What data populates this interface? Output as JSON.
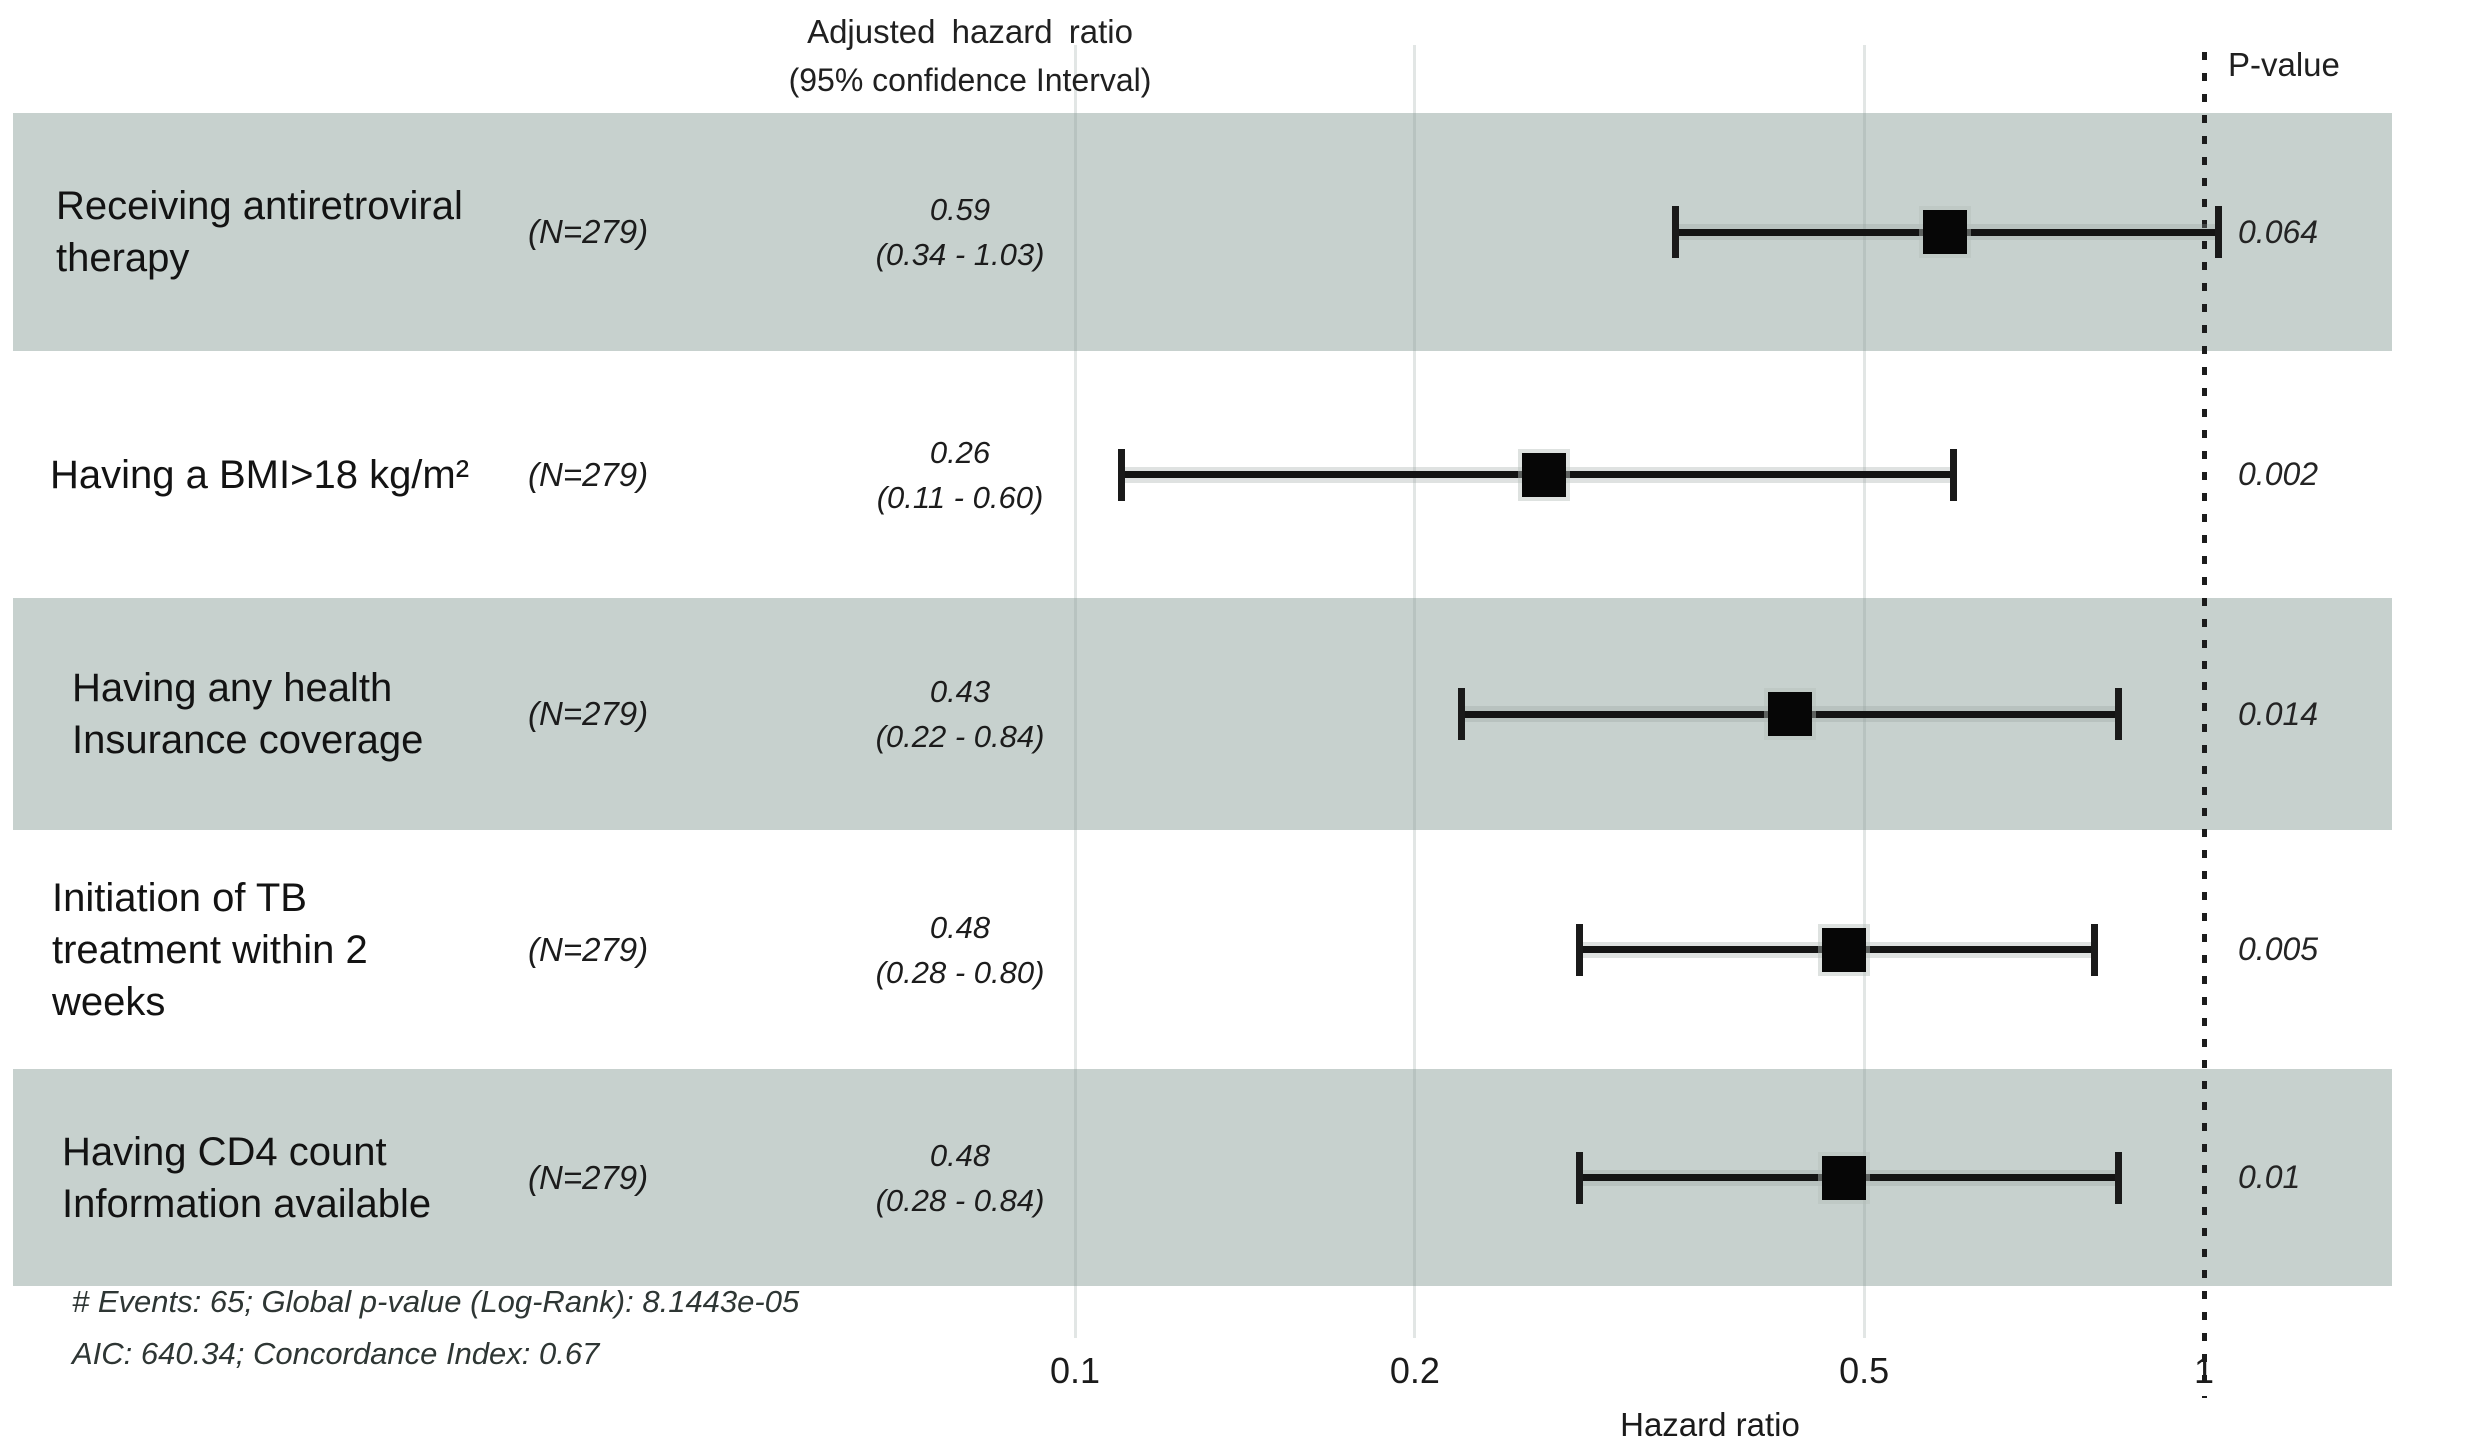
{
  "chart_data": {
    "type": "forest",
    "title": "Adjusted hazard ratio",
    "subtitle": "(95% confidence Interval)",
    "pvalue_header": "P-value",
    "xlabel": "Hazard ratio",
    "x_scale": "log10",
    "x_ticks": [
      0.1,
      0.2,
      0.5,
      1
    ],
    "x_tick_labels": [
      "0.1",
      "0.2",
      "0.5",
      "1"
    ],
    "reference_value": 1,
    "legend_position": "none",
    "grid": "vertical-light",
    "rows": [
      {
        "label_lines": [
          "Receiving antiretroviral",
          "therapy"
        ],
        "n_label": "(N=279)",
        "estimate_label": "0.59",
        "ci_label": "(0.34 - 1.03)",
        "hr": 0.59,
        "ci_low": 0.34,
        "ci_high": 1.03,
        "p_value": "0.064",
        "shaded": true
      },
      {
        "label_lines": [
          "Having a BMI>18 kg/m²"
        ],
        "n_label": "(N=279)",
        "estimate_label": "0.26",
        "ci_label": "(0.11 - 0.60)",
        "hr": 0.26,
        "ci_low": 0.11,
        "ci_high": 0.6,
        "p_value": "0.002",
        "shaded": false
      },
      {
        "label_lines": [
          "Having any health",
          "Insurance coverage"
        ],
        "n_label": "(N=279)",
        "estimate_label": "0.43",
        "ci_label": "(0.22 - 0.84)",
        "hr": 0.43,
        "ci_low": 0.22,
        "ci_high": 0.84,
        "p_value": "0.014",
        "shaded": true
      },
      {
        "label_lines": [
          "Initiation of TB",
          "treatment within 2",
          "weeks"
        ],
        "n_label": "(N=279)",
        "estimate_label": "0.48",
        "ci_label": "(0.28 - 0.80)",
        "hr": 0.48,
        "ci_low": 0.28,
        "ci_high": 0.8,
        "p_value": "0.005",
        "shaded": false
      },
      {
        "label_lines": [
          "Having CD4 count",
          "Information available"
        ],
        "n_label": "(N=279)",
        "estimate_label": "0.48",
        "ci_label": "(0.28 - 0.84)",
        "hr": 0.48,
        "ci_low": 0.28,
        "ci_high": 0.84,
        "p_value": "0.01",
        "shaded": true
      }
    ],
    "footnote_line1": "# Events: 65; Global p-value (Log-Rank): 8.1443e-05",
    "footnote_line2": "AIC: 640.34; Concordance Index: 0.67",
    "colors": {
      "band": "#c7d1ce",
      "marker": "#060606",
      "reference_line": "#1c1c1c",
      "gridline": "#aebab5"
    }
  }
}
